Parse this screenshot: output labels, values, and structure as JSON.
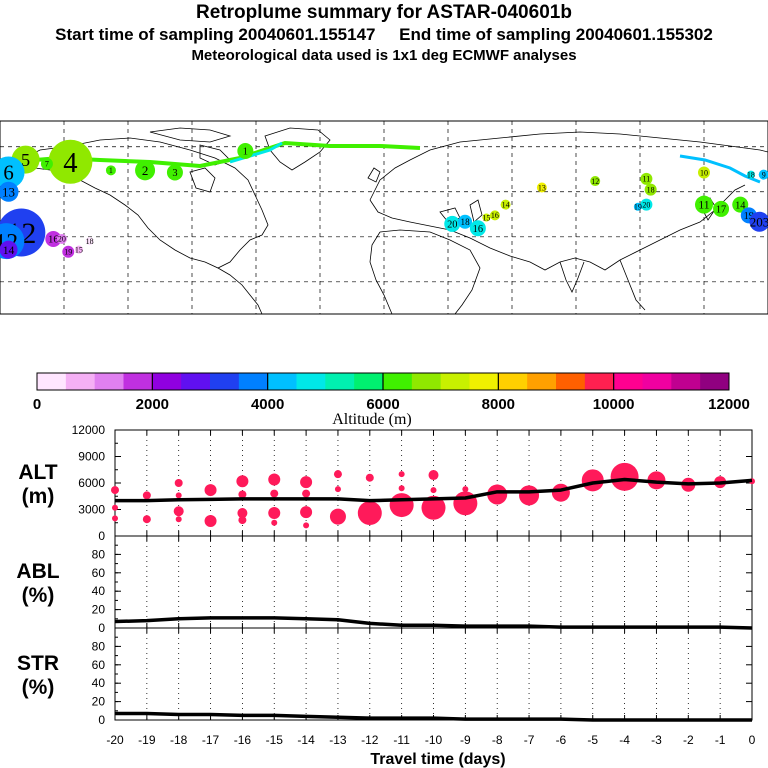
{
  "header": {
    "title": "Retroplume summary for ASTAR-040601b",
    "subtitle_start": "Start time of sampling 20040601.155147",
    "subtitle_end": "End time of sampling 20040601.155302",
    "subtitle_met": "Meteorological data used is 1x1 deg ECMWF analyses"
  },
  "colorbar": {
    "label": "Altitude (m)",
    "ticks": [
      "0",
      "2000",
      "4000",
      "6000",
      "8000",
      "10000",
      "12000"
    ],
    "colors": [
      "#ffe6ff",
      "#f5b0f5",
      "#e080f0",
      "#c030e0",
      "#9000e0",
      "#6010f0",
      "#2040f0",
      "#0080ff",
      "#00c0ff",
      "#00e8e8",
      "#00f0b0",
      "#00f070",
      "#40f000",
      "#90e800",
      "#c8f000",
      "#f0f000",
      "#ffd000",
      "#ffa000",
      "#ff6000",
      "#ff2050",
      "#ff0090",
      "#f000a0",
      "#c00090",
      "#900080"
    ]
  },
  "map": {
    "markers": [
      {
        "label": "5",
        "lon": -168,
        "lat": 72,
        "size": 14,
        "color": "#90e800"
      },
      {
        "label": "4",
        "lon": -147,
        "lat": 71,
        "size": 22,
        "color": "#90e800"
      },
      {
        "label": "6",
        "lon": -176,
        "lat": 66,
        "size": 16,
        "color": "#00c0ff"
      },
      {
        "label": "7",
        "lon": -158,
        "lat": 70,
        "size": 6,
        "color": "#40f000"
      },
      {
        "label": "1",
        "lon": -65,
        "lat": 76,
        "size": 8,
        "color": "#40f000"
      },
      {
        "label": "2",
        "lon": -112,
        "lat": 67,
        "size": 10,
        "color": "#40f000"
      },
      {
        "label": "3",
        "lon": -98,
        "lat": 66,
        "size": 8,
        "color": "#40f000"
      },
      {
        "label": "1",
        "lon": -128,
        "lat": 67,
        "size": 5,
        "color": "#40f000"
      },
      {
        "label": "12",
        "lon": -170,
        "lat": 38,
        "size": 24,
        "color": "#2040f0"
      },
      {
        "label": "12",
        "lon": -177,
        "lat": 34,
        "size": 18,
        "color": "#0080ff"
      },
      {
        "label": "13",
        "lon": -176,
        "lat": 57,
        "size": 10,
        "color": "#0080ff"
      },
      {
        "label": "14",
        "lon": -176,
        "lat": 30,
        "size": 9,
        "color": "#6010f0"
      },
      {
        "label": "16",
        "lon": -155,
        "lat": 35,
        "size": 8,
        "color": "#c030e0"
      },
      {
        "label": "20",
        "lon": -151,
        "lat": 35,
        "size": 5,
        "color": "#e080f0"
      },
      {
        "label": "15",
        "lon": -143,
        "lat": 30,
        "size": 4,
        "color": "#f5b0f5"
      },
      {
        "label": "18",
        "lon": -138,
        "lat": 34,
        "size": 4,
        "color": "#ffe6ff"
      },
      {
        "label": "19",
        "lon": -148,
        "lat": 29,
        "size": 6,
        "color": "#c030e0"
      },
      {
        "label": "20",
        "lon": 32,
        "lat": 42,
        "size": 8,
        "color": "#00e8e8"
      },
      {
        "label": "18",
        "lon": 38,
        "lat": 43,
        "size": 7,
        "color": "#00c0ff"
      },
      {
        "label": "16",
        "lon": 44,
        "lat": 40,
        "size": 8,
        "color": "#00e8e8"
      },
      {
        "label": "14",
        "lon": 57,
        "lat": 51,
        "size": 5,
        "color": "#c8f000"
      },
      {
        "label": "16",
        "lon": 52,
        "lat": 46,
        "size": 5,
        "color": "#c8f000"
      },
      {
        "label": "15",
        "lon": 48,
        "lat": 45,
        "size": 4,
        "color": "#c8f000"
      },
      {
        "label": "13",
        "lon": 74,
        "lat": 59,
        "size": 5,
        "color": "#f0f000"
      },
      {
        "label": "12",
        "lon": 99,
        "lat": 62,
        "size": 5,
        "color": "#90e800"
      },
      {
        "label": "11",
        "lon": 123,
        "lat": 63,
        "size": 6,
        "color": "#90e800"
      },
      {
        "label": "18",
        "lon": 125,
        "lat": 58,
        "size": 6,
        "color": "#90e800"
      },
      {
        "label": "20",
        "lon": 123,
        "lat": 51,
        "size": 6,
        "color": "#00e8e8"
      },
      {
        "label": "19",
        "lon": 119,
        "lat": 50,
        "size": 4,
        "color": "#00c0ff"
      },
      {
        "label": "10",
        "lon": 150,
        "lat": 66,
        "size": 6,
        "color": "#c8f000"
      },
      {
        "label": "11",
        "lon": 150,
        "lat": 51,
        "size": 9,
        "color": "#40f000"
      },
      {
        "label": "17",
        "lon": 158,
        "lat": 49,
        "size": 8,
        "color": "#40f000"
      },
      {
        "label": "14",
        "lon": 167,
        "lat": 51,
        "size": 8,
        "color": "#40f000"
      },
      {
        "label": "19",
        "lon": 171,
        "lat": 46,
        "size": 8,
        "color": "#0080ff"
      },
      {
        "label": "203",
        "lon": 176,
        "lat": 43,
        "size": 10,
        "color": "#2040f0"
      },
      {
        "label": "9",
        "lon": 178,
        "lat": 65,
        "size": 5,
        "color": "#00c0ff"
      },
      {
        "label": "18",
        "lon": 172,
        "lat": 65,
        "size": 4,
        "color": "#00e8e8"
      }
    ]
  },
  "chart_data": [
    {
      "type": "scatter",
      "name": "ALT",
      "ylabel_line1": "ALT",
      "ylabel_line2": "(m)",
      "xlabel": "Travel time (days)",
      "ylim": [
        0,
        12000
      ],
      "yticks": [
        "0",
        "3000",
        "6000",
        "9000",
        "12000"
      ],
      "x_ticks": [
        "-20",
        "-19",
        "-18",
        "-17",
        "-16",
        "-15",
        "-14",
        "-13",
        "-12",
        "-11",
        "-10",
        "-9",
        "-8",
        "-7",
        "-6",
        "-5",
        "-4",
        "-3",
        "-2",
        "-1",
        "0"
      ],
      "median_line": {
        "x": [
          -20,
          -19,
          -18,
          -17,
          -16,
          -15,
          -14,
          -13,
          -12,
          -11,
          -10,
          -9,
          -8,
          -7,
          -6,
          -5,
          -4,
          -3,
          -2,
          -1,
          0
        ],
        "y": [
          4000,
          4000,
          4100,
          4150,
          4200,
          4200,
          4200,
          4200,
          4000,
          4100,
          4200,
          4300,
          5000,
          5000,
          5200,
          6000,
          6400,
          6100,
          5900,
          6000,
          6300
        ]
      },
      "points": [
        {
          "x": -20,
          "y": 5200,
          "s": 4
        },
        {
          "x": -20,
          "y": 3200,
          "s": 3
        },
        {
          "x": -20,
          "y": 2000,
          "s": 3
        },
        {
          "x": -19,
          "y": 4600,
          "s": 4
        },
        {
          "x": -19,
          "y": 1900,
          "s": 4
        },
        {
          "x": -18,
          "y": 6000,
          "s": 4
        },
        {
          "x": -18,
          "y": 4600,
          "s": 3
        },
        {
          "x": -18,
          "y": 2800,
          "s": 5
        },
        {
          "x": -18,
          "y": 1900,
          "s": 3
        },
        {
          "x": -17,
          "y": 5200,
          "s": 6
        },
        {
          "x": -17,
          "y": 1700,
          "s": 6
        },
        {
          "x": -16,
          "y": 6200,
          "s": 6
        },
        {
          "x": -16,
          "y": 4700,
          "s": 4
        },
        {
          "x": -16,
          "y": 2600,
          "s": 5
        },
        {
          "x": -16,
          "y": 1800,
          "s": 4
        },
        {
          "x": -15,
          "y": 6400,
          "s": 6
        },
        {
          "x": -15,
          "y": 4800,
          "s": 4
        },
        {
          "x": -15,
          "y": 2600,
          "s": 6
        },
        {
          "x": -15,
          "y": 1500,
          "s": 3
        },
        {
          "x": -14,
          "y": 6100,
          "s": 6
        },
        {
          "x": -14,
          "y": 4800,
          "s": 4
        },
        {
          "x": -14,
          "y": 2700,
          "s": 6
        },
        {
          "x": -14,
          "y": 1200,
          "s": 3
        },
        {
          "x": -13,
          "y": 7000,
          "s": 4
        },
        {
          "x": -13,
          "y": 5300,
          "s": 3
        },
        {
          "x": -13,
          "y": 2200,
          "s": 8
        },
        {
          "x": -12,
          "y": 6600,
          "s": 4
        },
        {
          "x": -12,
          "y": 2600,
          "s": 12
        },
        {
          "x": -11,
          "y": 7000,
          "s": 3
        },
        {
          "x": -11,
          "y": 5400,
          "s": 3
        },
        {
          "x": -11,
          "y": 3500,
          "s": 12
        },
        {
          "x": -10,
          "y": 6900,
          "s": 5
        },
        {
          "x": -10,
          "y": 5200,
          "s": 3
        },
        {
          "x": -10,
          "y": 3200,
          "s": 12
        },
        {
          "x": -9,
          "y": 5300,
          "s": 3
        },
        {
          "x": -9,
          "y": 3700,
          "s": 12
        },
        {
          "x": -8,
          "y": 5500,
          "s": 3
        },
        {
          "x": -8,
          "y": 4700,
          "s": 10
        },
        {
          "x": -7,
          "y": 4600,
          "s": 10
        },
        {
          "x": -6,
          "y": 4900,
          "s": 9
        },
        {
          "x": -5,
          "y": 6300,
          "s": 11
        },
        {
          "x": -4,
          "y": 6700,
          "s": 14
        },
        {
          "x": -3,
          "y": 6300,
          "s": 9
        },
        {
          "x": -2,
          "y": 5800,
          "s": 7
        },
        {
          "x": -1,
          "y": 6100,
          "s": 6
        },
        {
          "x": 0,
          "y": 6200,
          "s": 3
        }
      ]
    },
    {
      "type": "line",
      "name": "ABL",
      "ylabel_line1": "ABL",
      "ylabel_line2": "(%)",
      "ylim": [
        0,
        100
      ],
      "yticks": [
        "0",
        "20",
        "40",
        "60",
        "80"
      ],
      "x": [
        -20,
        -19,
        -18,
        -17,
        -16,
        -15,
        -14,
        -13,
        -12,
        -11,
        -10,
        -9,
        -8,
        -7,
        -6,
        -5,
        -4,
        -3,
        -2,
        -1,
        0
      ],
      "y": [
        7,
        8,
        10,
        11,
        11,
        11,
        10,
        9,
        5,
        3,
        3,
        2,
        2,
        2,
        1,
        1,
        1,
        1,
        1,
        1,
        0
      ]
    },
    {
      "type": "line",
      "name": "STR",
      "ylabel_line1": "STR",
      "ylabel_line2": "(%)",
      "ylim": [
        0,
        100
      ],
      "yticks": [
        "0",
        "20",
        "40",
        "60",
        "80"
      ],
      "x": [
        -20,
        -19,
        -18,
        -17,
        -16,
        -15,
        -14,
        -13,
        -12,
        -11,
        -10,
        -9,
        -8,
        -7,
        -6,
        -5,
        -4,
        -3,
        -2,
        -1,
        0
      ],
      "y": [
        7,
        7,
        6,
        6,
        5,
        5,
        4,
        3,
        2,
        2,
        2,
        1,
        1,
        1,
        1,
        0,
        0,
        0,
        0,
        0,
        0
      ]
    }
  ]
}
